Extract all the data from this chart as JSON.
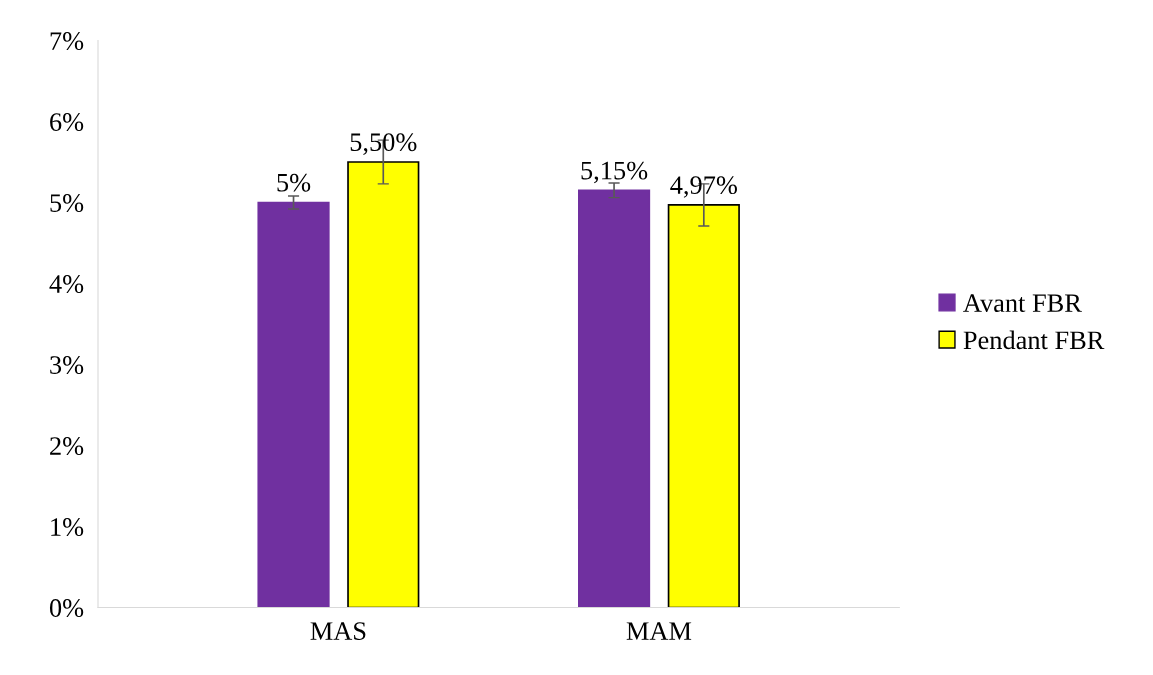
{
  "chart_data": {
    "type": "bar",
    "categories": [
      "MAS",
      "MAM"
    ],
    "series": [
      {
        "name": "Avant FBR",
        "color": "#7030a0",
        "values": [
          5,
          5.15
        ],
        "errors": [
          0.08,
          0.09
        ],
        "value_labels": [
          "5%",
          "5,15%"
        ]
      },
      {
        "name": "Pendant FBR",
        "color": "#ffff00",
        "values": [
          5.5,
          4.97
        ],
        "errors": [
          0.27,
          0.26
        ],
        "value_labels": [
          "5,50%",
          "4,97%"
        ]
      }
    ],
    "ylim": [
      0,
      7
    ],
    "yticks": [
      {
        "value": 0,
        "label": "0%"
      },
      {
        "value": 1,
        "label": "1%"
      },
      {
        "value": 2,
        "label": "2%"
      },
      {
        "value": 3,
        "label": "3%"
      },
      {
        "value": 4,
        "label": "4%"
      },
      {
        "value": 5,
        "label": "5%"
      },
      {
        "value": 6,
        "label": "6%"
      },
      {
        "value": 7,
        "label": "7%"
      }
    ],
    "grid": false,
    "legend": "right"
  }
}
